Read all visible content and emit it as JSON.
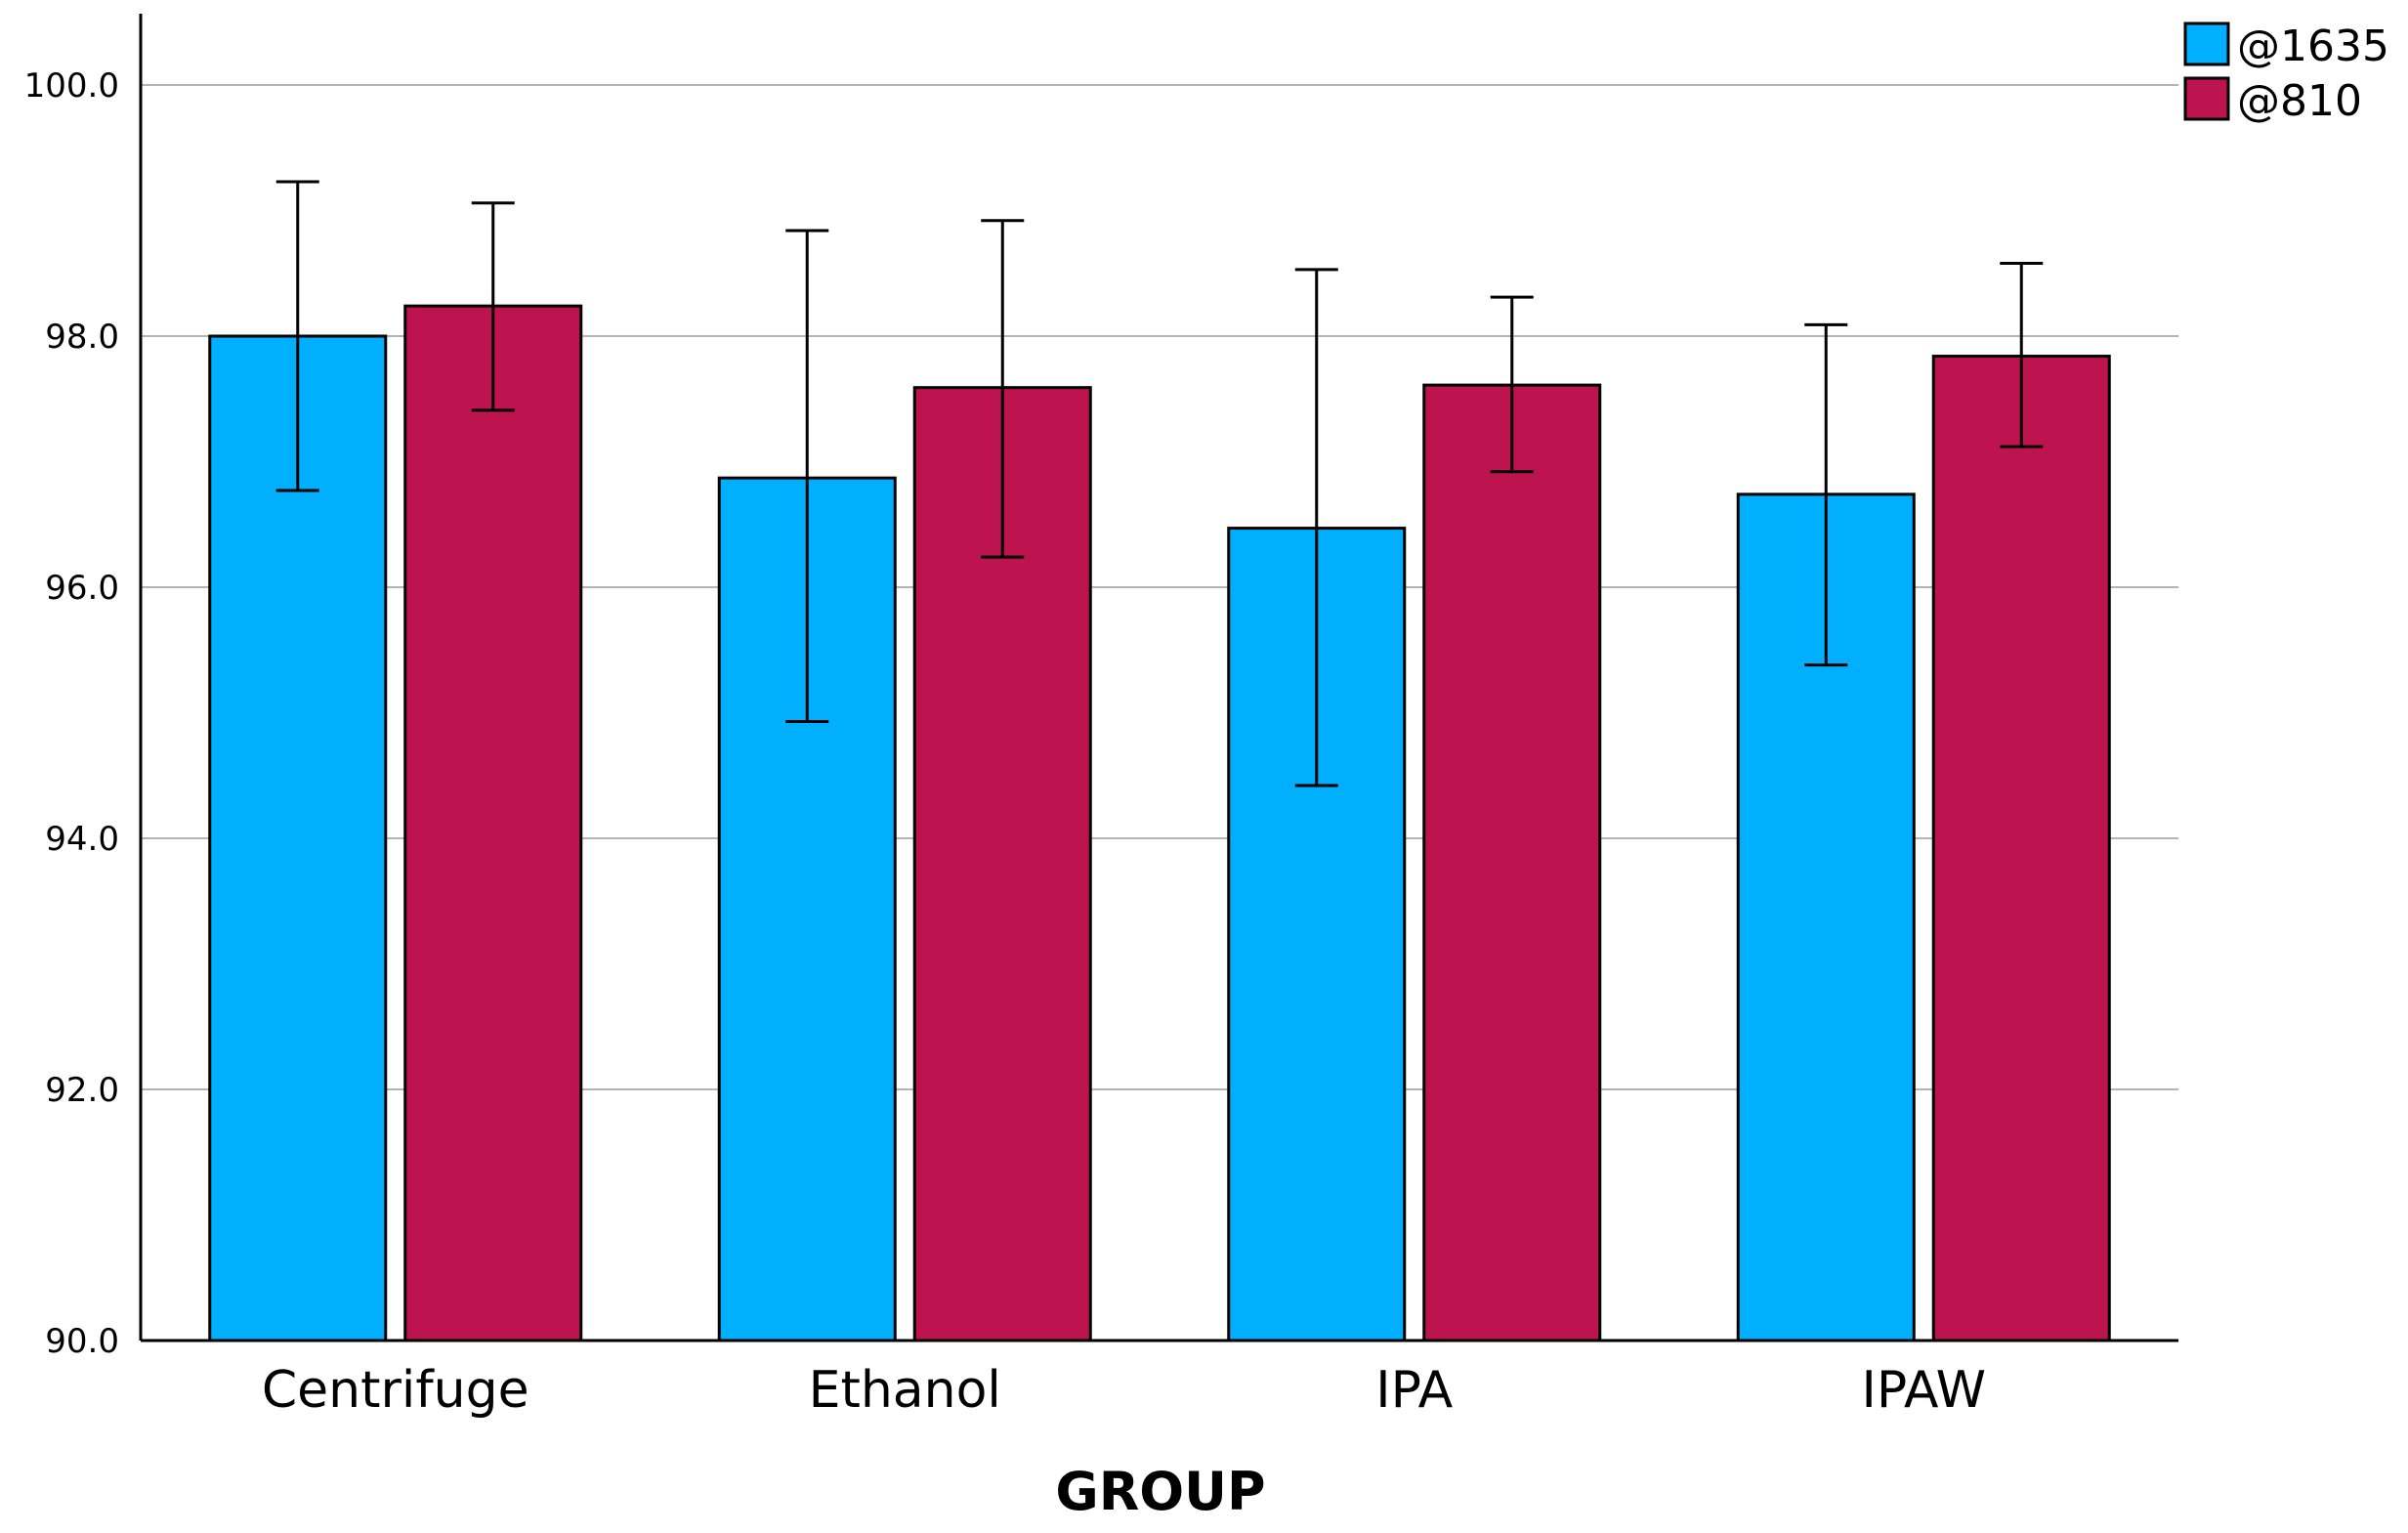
{
  "chart_data": {
    "type": "bar",
    "title": "",
    "xlabel": "GROUP",
    "ylabel": "",
    "categories": [
      "Centrifuge",
      "Ethanol",
      "IPA",
      "IPAW"
    ],
    "series": [
      {
        "name": "@1635",
        "color": "#00b0ff",
        "values": [
          98.0,
          96.87,
          96.47,
          96.74
        ],
        "error_low": [
          96.77,
          94.93,
          94.42,
          95.38
        ],
        "error_high": [
          99.23,
          98.84,
          98.53,
          98.09
        ]
      },
      {
        "name": "@810",
        "color": "#bd134f",
        "values": [
          98.24,
          97.59,
          97.61,
          97.84
        ],
        "error_low": [
          97.41,
          96.24,
          96.92,
          97.12
        ],
        "error_high": [
          99.06,
          98.92,
          98.31,
          98.58
        ]
      }
    ],
    "ylim": [
      90.0,
      100.6
    ],
    "yticks": [
      "90.0",
      "92.0",
      "94.0",
      "96.0",
      "98.0",
      "100.0"
    ],
    "ytick_values": [
      90,
      92,
      94,
      96,
      98,
      100
    ],
    "grid": true,
    "legend_position": "top-right"
  }
}
